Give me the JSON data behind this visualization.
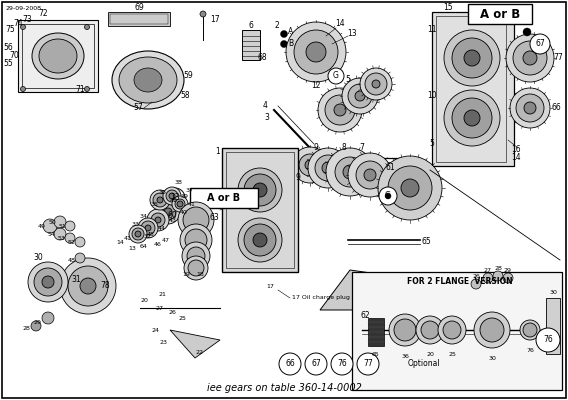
{
  "bg_color": "#ffffff",
  "line_color": "#000000",
  "text_color": "#000000",
  "fig_width": 5.68,
  "fig_height": 4.0,
  "dpi": 100,
  "date": "29-09-2008",
  "bottom_note": "iee gears on table 360-14-0002",
  "oil_charge_label": "17 Oil charge plug",
  "optional_label": "Optional",
  "flange_label": "FOR 2 FLANGE  VERSION",
  "aorb_label": "A or B",
  "circle_labels_bottom": [
    "66",
    "67",
    "76",
    "77"
  ]
}
